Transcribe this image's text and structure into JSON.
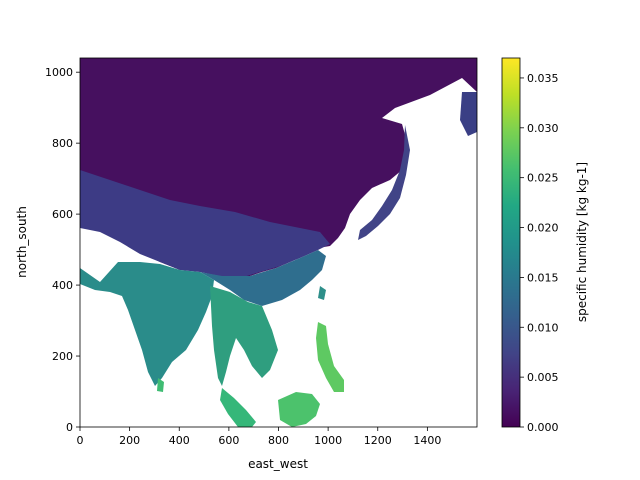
{
  "chart_data": {
    "type": "heatmap",
    "title": "",
    "xlabel": "east_west",
    "ylabel": "north_south",
    "xlim": [
      0,
      1600
    ],
    "ylim": [
      0,
      1040
    ],
    "x_ticks": [
      0,
      200,
      400,
      600,
      800,
      1000,
      1200,
      1400
    ],
    "y_ticks": [
      0,
      200,
      400,
      600,
      800,
      1000
    ],
    "colorbar": {
      "label": "specific humidity [kg kg-1]",
      "range": [
        0.0,
        0.037
      ],
      "ticks": [
        "0.000",
        "0.005",
        "0.010",
        "0.015",
        "0.020",
        "0.025",
        "0.030",
        "0.035"
      ],
      "tick_values": [
        0.0,
        0.005,
        0.01,
        0.015,
        0.02,
        0.025,
        0.03,
        0.035
      ],
      "colormap": "viridis"
    },
    "grid": false,
    "missing_value_color": "#ffffff"
  }
}
